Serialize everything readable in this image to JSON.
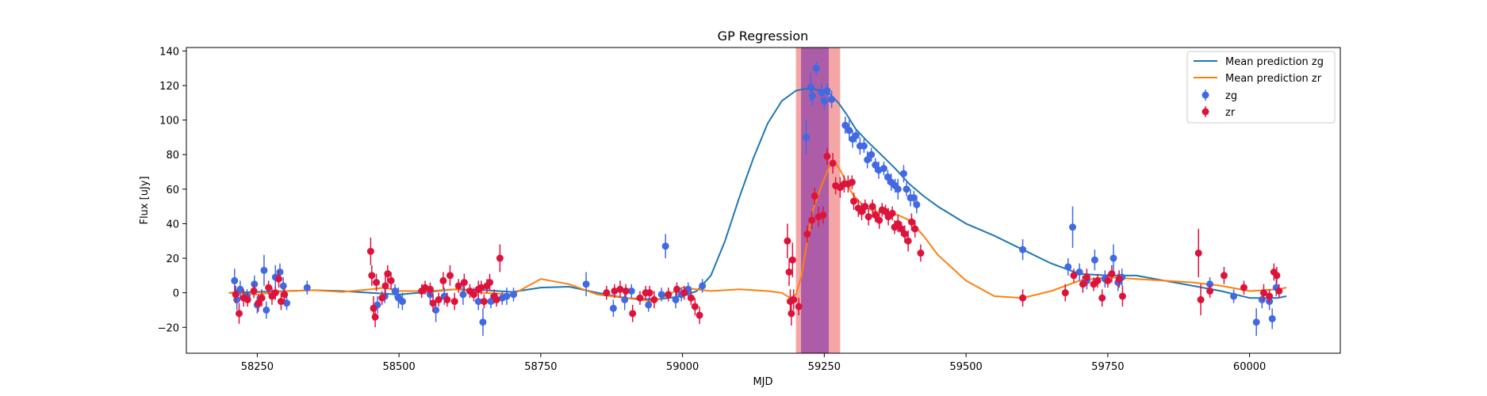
{
  "chart_data": {
    "type": "scatter",
    "title": "GP Regression",
    "xlabel": "MJD",
    "ylabel": "Flux [uJy]",
    "xlim": [
      58125,
      60160
    ],
    "ylim": [
      -35,
      142
    ],
    "x_ticks": [
      58250,
      58500,
      58750,
      59000,
      59250,
      59500,
      59750,
      60000
    ],
    "y_ticks": [
      -20,
      0,
      20,
      40,
      60,
      80,
      100,
      120,
      140
    ],
    "grid": false,
    "legend_position": "top-right",
    "spans": [
      {
        "from": 59200,
        "to": 59278,
        "color": "#f08080"
      },
      {
        "from": 59209,
        "to": 59258,
        "color": "#8e3fa8"
      }
    ],
    "lines": [
      {
        "name": "Mean prediction zg",
        "color": "#1f77b4",
        "x": [
          58200,
          58250,
          58300,
          58350,
          58400,
          58450,
          58500,
          58550,
          58600,
          58650,
          58700,
          58750,
          58800,
          58850,
          58900,
          58950,
          59000,
          59025,
          59050,
          59075,
          59100,
          59125,
          59150,
          59175,
          59200,
          59215,
          59230,
          59245,
          59260,
          59275,
          59290,
          59305,
          59325,
          59350,
          59375,
          59400,
          59425,
          59450,
          59475,
          59500,
          59550,
          59600,
          59650,
          59700,
          59750,
          59800,
          59850,
          59900,
          59950,
          60000,
          60050,
          60065
        ],
        "y": [
          0,
          0.5,
          1,
          1.5,
          1,
          0,
          -1,
          0.5,
          2,
          1.5,
          0.5,
          3,
          3.5,
          0,
          -3,
          -4,
          -2,
          1,
          10,
          30,
          55,
          78,
          98,
          111,
          117,
          118,
          118,
          117,
          115,
          110,
          103,
          95,
          88,
          80,
          72,
          63,
          56,
          50,
          45,
          40,
          33,
          25,
          17,
          11,
          10,
          10,
          7,
          4,
          1,
          -3,
          -3,
          -2
        ]
      },
      {
        "name": "Mean prediction zr",
        "color": "#ff7f0e",
        "x": [
          58200,
          58250,
          58300,
          58350,
          58400,
          58450,
          58475,
          58500,
          58550,
          58600,
          58650,
          58700,
          58750,
          58800,
          58850,
          58900,
          58950,
          59000,
          59050,
          59100,
          59150,
          59175,
          59190,
          59200,
          59210,
          59220,
          59230,
          59245,
          59255,
          59262,
          59270,
          59280,
          59290,
          59300,
          59320,
          59340,
          59360,
          59380,
          59400,
          59425,
          59450,
          59500,
          59550,
          59600,
          59650,
          59700,
          59750,
          59800,
          59850,
          59900,
          59950,
          60000,
          60050,
          60065
        ],
        "y": [
          0,
          -1,
          1,
          1.5,
          0.5,
          2,
          3,
          1,
          1,
          2,
          0,
          -1,
          8,
          5,
          -1,
          -3,
          -5,
          3,
          1,
          2,
          1,
          0,
          -3,
          -1,
          10,
          30,
          48,
          62,
          70,
          75,
          75,
          70,
          63,
          57,
          50,
          47,
          46,
          45,
          42,
          33,
          22,
          7,
          -2,
          -3,
          1,
          7,
          9,
          8,
          7,
          6,
          4,
          1,
          2,
          3
        ]
      }
    ],
    "series": [
      {
        "name": "zg",
        "color": "#4169e1",
        "points": [
          [
            58210,
            7,
            7
          ],
          [
            58214,
            -4,
            6
          ],
          [
            58220,
            2,
            5
          ],
          [
            58232,
            -2,
            4
          ],
          [
            58245,
            5,
            5
          ],
          [
            58250,
            -7,
            5
          ],
          [
            58262,
            13,
            9
          ],
          [
            58266,
            -10,
            5
          ],
          [
            58282,
            9,
            7
          ],
          [
            58290,
            12,
            5
          ],
          [
            58296,
            4,
            5
          ],
          [
            58302,
            -6,
            4
          ],
          [
            58338,
            3,
            4
          ],
          [
            58462,
            -7,
            5
          ],
          [
            58475,
            -2,
            4
          ],
          [
            58493,
            1,
            4
          ],
          [
            58499,
            -3,
            6
          ],
          [
            58506,
            -5,
            5
          ],
          [
            58555,
            -1,
            4
          ],
          [
            58565,
            -10,
            7
          ],
          [
            58580,
            -2,
            5
          ],
          [
            58613,
            -1,
            6
          ],
          [
            58640,
            -5,
            5
          ],
          [
            58648,
            -17,
            8
          ],
          [
            58662,
            -5,
            4
          ],
          [
            58682,
            -3,
            4
          ],
          [
            58690,
            -2,
            5
          ],
          [
            58702,
            -1,
            4
          ],
          [
            58830,
            5,
            7
          ],
          [
            58878,
            -9,
            5
          ],
          [
            58898,
            -4,
            6
          ],
          [
            58910,
            1,
            4
          ],
          [
            58940,
            -7,
            4
          ],
          [
            58963,
            -1,
            4
          ],
          [
            58970,
            27,
            7
          ],
          [
            58988,
            -4,
            5
          ],
          [
            58998,
            -1,
            4
          ],
          [
            59010,
            2,
            4
          ],
          [
            59035,
            4,
            4
          ],
          [
            59218,
            90,
            10
          ],
          [
            59226,
            119,
            8
          ],
          [
            59229,
            114,
            6
          ],
          [
            59236,
            130,
            4
          ],
          [
            59245,
            116,
            5
          ],
          [
            59250,
            111,
            5
          ],
          [
            59255,
            117,
            4
          ],
          [
            59263,
            112,
            5
          ],
          [
            59287,
            97,
            5
          ],
          [
            59294,
            94,
            6
          ],
          [
            59300,
            89,
            5
          ],
          [
            59306,
            91,
            4
          ],
          [
            59313,
            85,
            5
          ],
          [
            59320,
            85,
            4
          ],
          [
            59326,
            77,
            5
          ],
          [
            59333,
            80,
            4
          ],
          [
            59340,
            74,
            4
          ],
          [
            59346,
            71,
            5
          ],
          [
            59355,
            72,
            4
          ],
          [
            59362,
            67,
            4
          ],
          [
            59368,
            64,
            5
          ],
          [
            59375,
            62,
            4
          ],
          [
            59380,
            60,
            6
          ],
          [
            59390,
            69,
            5
          ],
          [
            59395,
            60,
            4
          ],
          [
            59402,
            55,
            5
          ],
          [
            59408,
            55,
            4
          ],
          [
            59413,
            51,
            5
          ],
          [
            59600,
            25,
            6
          ],
          [
            59680,
            15,
            5
          ],
          [
            59688,
            38,
            12
          ],
          [
            59700,
            12,
            5
          ],
          [
            59713,
            7,
            5
          ],
          [
            59727,
            19,
            6
          ],
          [
            59745,
            8,
            5
          ],
          [
            59760,
            20,
            8
          ],
          [
            59768,
            6,
            5
          ],
          [
            59775,
            9,
            5
          ],
          [
            59930,
            5,
            4
          ],
          [
            59972,
            -2,
            4
          ],
          [
            60012,
            -17,
            8
          ],
          [
            60022,
            -4,
            5
          ],
          [
            60035,
            -5,
            5
          ],
          [
            60040,
            -15,
            6
          ],
          [
            60047,
            3,
            5
          ]
        ]
      },
      {
        "name": "zr",
        "color": "#dc143c",
        "points": [
          [
            58212,
            -1,
            5
          ],
          [
            58218,
            -12,
            6
          ],
          [
            58226,
            -3,
            5
          ],
          [
            58233,
            -4,
            4
          ],
          [
            58244,
            1,
            4
          ],
          [
            58252,
            -6,
            5
          ],
          [
            58258,
            -3,
            5
          ],
          [
            58270,
            3,
            4
          ],
          [
            58276,
            -2,
            5
          ],
          [
            58282,
            0,
            4
          ],
          [
            58288,
            8,
            5
          ],
          [
            58292,
            -5,
            5
          ],
          [
            58298,
            -1,
            4
          ],
          [
            58450,
            24,
            8
          ],
          [
            58452,
            10,
            6
          ],
          [
            58455,
            -9,
            7
          ],
          [
            58458,
            -14,
            6
          ],
          [
            58460,
            6,
            5
          ],
          [
            58470,
            -3,
            4
          ],
          [
            58476,
            4,
            6
          ],
          [
            58480,
            11,
            5
          ],
          [
            58486,
            7,
            5
          ],
          [
            58540,
            1,
            4
          ],
          [
            58546,
            3,
            4
          ],
          [
            58555,
            2,
            4
          ],
          [
            58560,
            -6,
            5
          ],
          [
            58570,
            -4,
            4
          ],
          [
            58578,
            7,
            5
          ],
          [
            58585,
            -4,
            4
          ],
          [
            58590,
            10,
            6
          ],
          [
            58598,
            -5,
            5
          ],
          [
            58605,
            4,
            4
          ],
          [
            58615,
            6,
            5
          ],
          [
            58625,
            1,
            4
          ],
          [
            58632,
            -1,
            4
          ],
          [
            58640,
            2,
            5
          ],
          [
            58645,
            3,
            4
          ],
          [
            58650,
            -5,
            4
          ],
          [
            58655,
            4,
            4
          ],
          [
            58660,
            6,
            5
          ],
          [
            58668,
            -2,
            4
          ],
          [
            58672,
            -4,
            4
          ],
          [
            58678,
            20,
            8
          ],
          [
            58866,
            0,
            4
          ],
          [
            58880,
            1,
            4
          ],
          [
            58890,
            2,
            5
          ],
          [
            58900,
            1,
            4
          ],
          [
            58912,
            -12,
            5
          ],
          [
            58925,
            -3,
            4
          ],
          [
            58935,
            0,
            4
          ],
          [
            58942,
            0,
            4
          ],
          [
            58950,
            -4,
            5
          ],
          [
            58975,
            -1,
            4
          ],
          [
            58990,
            2,
            4
          ],
          [
            59003,
            0,
            4
          ],
          [
            59015,
            -3,
            4
          ],
          [
            59022,
            -8,
            5
          ],
          [
            59030,
            -13,
            5
          ],
          [
            59185,
            30,
            10
          ],
          [
            59188,
            12,
            8
          ],
          [
            59190,
            -5,
            7
          ],
          [
            59192,
            -12,
            7
          ],
          [
            59194,
            19,
            10
          ],
          [
            59196,
            -4,
            6
          ],
          [
            59205,
            -8,
            5
          ],
          [
            59220,
            34,
            5
          ],
          [
            59228,
            42,
            5
          ],
          [
            59233,
            56,
            5
          ],
          [
            59240,
            44,
            6
          ],
          [
            59248,
            45,
            5
          ],
          [
            59255,
            79,
            5
          ],
          [
            59265,
            75,
            6
          ],
          [
            59270,
            62,
            5
          ],
          [
            59278,
            61,
            6
          ],
          [
            59285,
            63,
            5
          ],
          [
            59292,
            63,
            5
          ],
          [
            59299,
            64,
            4
          ],
          [
            59302,
            53,
            5
          ],
          [
            59310,
            49,
            5
          ],
          [
            59316,
            47,
            5
          ],
          [
            59322,
            50,
            4
          ],
          [
            59328,
            44,
            5
          ],
          [
            59335,
            50,
            4
          ],
          [
            59340,
            45,
            4
          ],
          [
            59347,
            42,
            5
          ],
          [
            59352,
            48,
            4
          ],
          [
            59358,
            47,
            4
          ],
          [
            59363,
            44,
            5
          ],
          [
            59370,
            46,
            4
          ],
          [
            59374,
            38,
            4
          ],
          [
            59380,
            40,
            5
          ],
          [
            59386,
            37,
            4
          ],
          [
            59392,
            34,
            5
          ],
          [
            59398,
            30,
            6
          ],
          [
            59404,
            41,
            5
          ],
          [
            59410,
            37,
            5
          ],
          [
            59420,
            23,
            5
          ],
          [
            59600,
            -3,
            5
          ],
          [
            59675,
            0,
            5
          ],
          [
            59690,
            10,
            4
          ],
          [
            59706,
            5,
            5
          ],
          [
            59713,
            9,
            5
          ],
          [
            59725,
            5,
            4
          ],
          [
            59732,
            7,
            4
          ],
          [
            59740,
            -3,
            5
          ],
          [
            59750,
            7,
            4
          ],
          [
            59757,
            11,
            5
          ],
          [
            59770,
            8,
            5
          ],
          [
            59776,
            -2,
            6
          ],
          [
            59910,
            23,
            14
          ],
          [
            59914,
            -4,
            9
          ],
          [
            59930,
            1,
            4
          ],
          [
            59955,
            10,
            5
          ],
          [
            59990,
            3,
            4
          ],
          [
            60025,
            0,
            5
          ],
          [
            60035,
            -2,
            4
          ],
          [
            60043,
            12,
            5
          ],
          [
            60048,
            10,
            5
          ],
          [
            60052,
            1,
            4
          ]
        ]
      }
    ]
  }
}
